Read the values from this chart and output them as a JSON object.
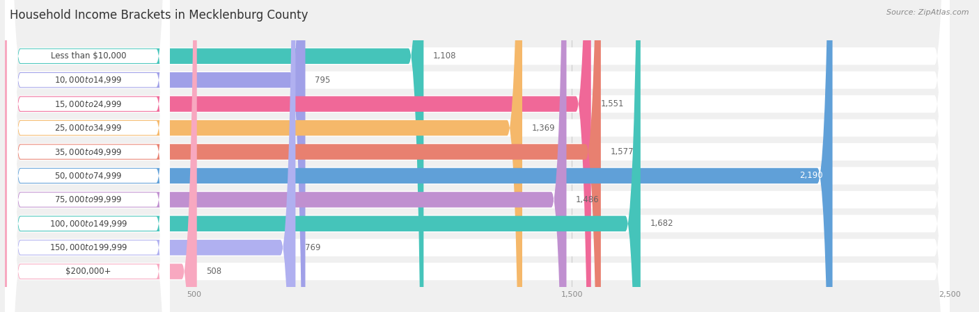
{
  "title": "Household Income Brackets in Mecklenburg County",
  "source": "Source: ZipAtlas.com",
  "categories": [
    "Less than $10,000",
    "$10,000 to $14,999",
    "$15,000 to $24,999",
    "$25,000 to $34,999",
    "$35,000 to $49,999",
    "$50,000 to $74,999",
    "$75,000 to $99,999",
    "$100,000 to $149,999",
    "$150,000 to $199,999",
    "$200,000+"
  ],
  "values": [
    1108,
    795,
    1551,
    1369,
    1577,
    2190,
    1486,
    1682,
    769,
    508
  ],
  "bar_colors": [
    "#45c4ba",
    "#a0a0e8",
    "#f06898",
    "#f5b86a",
    "#e88070",
    "#60a0d8",
    "#c090d0",
    "#45c4ba",
    "#b0b0f0",
    "#f8a8c0"
  ],
  "background_color": "#f0f0f0",
  "row_bg_color": "#ffffff",
  "title_fontsize": 12,
  "label_fontsize": 8.5,
  "value_fontsize": 8.5,
  "xlim": [
    0,
    2500
  ],
  "xticks": [
    500,
    1500,
    2500
  ],
  "xtick_labels": [
    "500",
    "1,500",
    "2,500"
  ],
  "value_label_color_outside": "#666666",
  "value_label_color_inside": "#ffffff",
  "inside_value_threshold": 2100
}
